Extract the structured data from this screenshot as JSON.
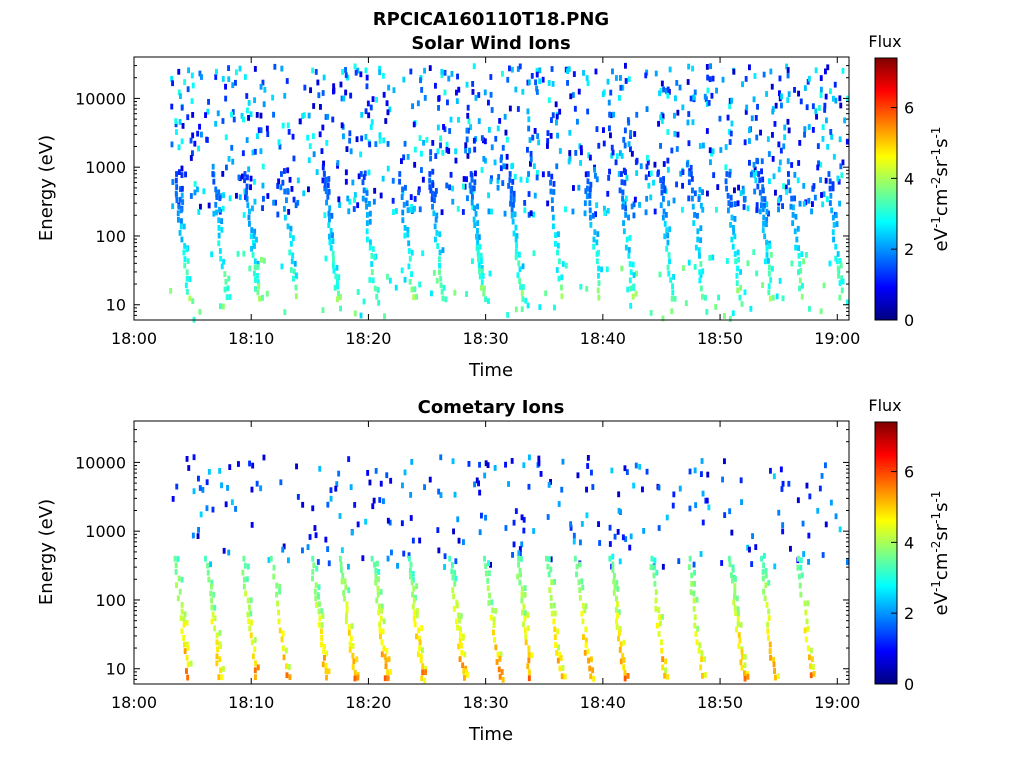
{
  "figure": {
    "suptitle": "RPCICA160110T18.PNG"
  },
  "colormap": [
    "#000080",
    "#0000ff",
    "#0080ff",
    "#00ffff",
    "#80ff80",
    "#ffff00",
    "#ff8000",
    "#ff0000",
    "#800000"
  ],
  "chart_data": [
    {
      "type": "heatmap",
      "title": "Solar Wind Ions",
      "xlabel": "Time",
      "ylabel": "Energy (eV)",
      "yscale": "log",
      "xlim": [
        "18:00",
        "19:01"
      ],
      "ylim": [
        6,
        40000
      ],
      "xticks": [
        "18:00",
        "18:10",
        "18:20",
        "18:30",
        "18:40",
        "18:50",
        "19:00"
      ],
      "yticks": [
        10,
        100,
        1000,
        10000
      ],
      "yticklabels": [
        "10",
        "100",
        "1000",
        "10000"
      ],
      "colorbar": {
        "label": "Flux",
        "units": [
          "eV",
          "-1",
          "cm",
          "-2",
          "sr",
          "-1",
          "s",
          "-1"
        ],
        "range": [
          0,
          7.4
        ],
        "ticks": [
          "0",
          "2",
          "4",
          "6"
        ]
      },
      "data_start": "18:03",
      "populations": [
        {
          "name": "sparse high-energy counts",
          "energy_range_eV": [
            200,
            30000
          ],
          "flux_range": [
            0.5,
            3.0
          ]
        },
        {
          "name": "low-energy band",
          "energy_range_eV": [
            6,
            60
          ],
          "flux_range": [
            2.5,
            3.8
          ]
        },
        {
          "name": "dispersed streaks",
          "energy_range_eV": [
            10,
            800
          ],
          "flux_range": [
            0.5,
            4.2
          ]
        }
      ]
    },
    {
      "type": "heatmap",
      "title": "Cometary Ions",
      "xlabel": "Time",
      "ylabel": "Energy (eV)",
      "yscale": "log",
      "xlim": [
        "18:00",
        "19:01"
      ],
      "ylim": [
        6,
        40000
      ],
      "xticks": [
        "18:00",
        "18:10",
        "18:20",
        "18:30",
        "18:40",
        "18:50",
        "19:00"
      ],
      "yticks": [
        10,
        100,
        1000,
        10000
      ],
      "yticklabels": [
        "10",
        "100",
        "1000",
        "10000"
      ],
      "colorbar": {
        "label": "Flux",
        "units": [
          "eV",
          "-1",
          "cm",
          "-2",
          "sr",
          "-1",
          "s",
          "-1"
        ],
        "range": [
          0,
          7.4
        ],
        "ticks": [
          "0",
          "2",
          "4",
          "6"
        ]
      },
      "data_start": "18:03",
      "populations": [
        {
          "name": "sparse high-energy counts",
          "energy_range_eV": [
            300,
            12000
          ],
          "flux_range": [
            0.5,
            2.5
          ]
        },
        {
          "name": "dispersed low-energy streaks",
          "energy_range_eV": [
            6,
            400
          ],
          "flux_range": [
            2.5,
            6.0
          ]
        }
      ]
    }
  ]
}
